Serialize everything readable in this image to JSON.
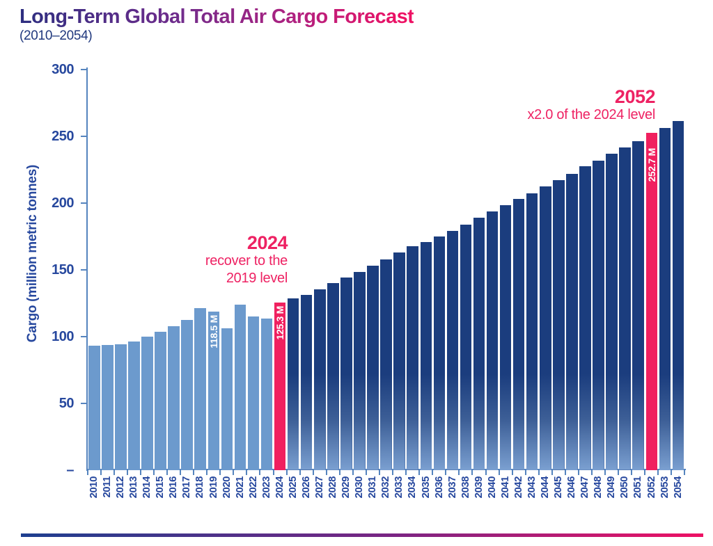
{
  "page": {
    "title": "Long-Term Global Total Air Cargo Forecast",
    "subtitle": "(2010–2054)"
  },
  "y_axis": {
    "label": "Cargo (million metric tonnes)",
    "tick_labels": [
      "300",
      "250",
      "200",
      "150",
      "100",
      "50",
      "–"
    ],
    "tick_values": [
      300,
      250,
      200,
      150,
      100,
      50,
      0
    ]
  },
  "annotations": {
    "recovery": {
      "year": "2024",
      "line1": "recover to the",
      "line2": "2019 level"
    },
    "doubling": {
      "year": "2052",
      "line1": "x2.0 of the 2024 level"
    }
  },
  "colors": {
    "historical_bar": "#6C9ACD",
    "forecast_bar_top": "#1B3D7E",
    "forecast_bar_bottom": "#7BA0D1",
    "highlight_bar": "#F0205F",
    "axis_text": "#27489E",
    "axis_line": "#5584BE",
    "annotation": "#EE2263",
    "title_gradient_start": "#2D2E80",
    "title_gradient_end": "#EE1164",
    "stripe_start": "#1D3F8F",
    "stripe_end": "#EE1164"
  },
  "chart_data": {
    "type": "bar",
    "title": "Long-Term Global Total Air Cargo Forecast",
    "subtitle": "(2010–2054)",
    "xlabel": "",
    "ylabel": "Cargo (million metric tonnes)",
    "ylim": [
      0,
      300
    ],
    "grid": false,
    "legend": false,
    "categories": [
      "2010",
      "2011",
      "2012",
      "2013",
      "2014",
      "2015",
      "2016",
      "2017",
      "2018",
      "2019",
      "2020",
      "2021",
      "2022",
      "2023",
      "2024",
      "2025",
      "2026",
      "2027",
      "2028",
      "2029",
      "2030",
      "2031",
      "2032",
      "2033",
      "2034",
      "2035",
      "2036",
      "2037",
      "2038",
      "2039",
      "2040",
      "2041",
      "2042",
      "2043",
      "2044",
      "2045",
      "2046",
      "2047",
      "2048",
      "2049",
      "2050",
      "2051",
      "2052",
      "2053",
      "2054"
    ],
    "values": [
      93,
      93.5,
      94.5,
      96.5,
      100,
      103.5,
      108,
      112.5,
      121.5,
      118.5,
      106.5,
      124,
      115,
      113.5,
      125.3,
      128.5,
      131,
      135.5,
      140,
      144.5,
      148.5,
      153,
      158,
      163,
      167.5,
      171,
      175,
      179,
      184,
      189,
      194,
      198.5,
      203,
      207.5,
      212.5,
      217,
      222,
      227.5,
      232,
      237,
      241.5,
      246.5,
      252.7,
      256.5,
      261.5
    ],
    "historical_last_year": "2023",
    "highlight_years": [
      "2024",
      "2052"
    ],
    "bar_labels": [
      {
        "year": "2019",
        "label": "118.5 M"
      },
      {
        "year": "2024",
        "label": "125.3 M"
      },
      {
        "year": "2052",
        "label": "252.7 M"
      }
    ]
  }
}
